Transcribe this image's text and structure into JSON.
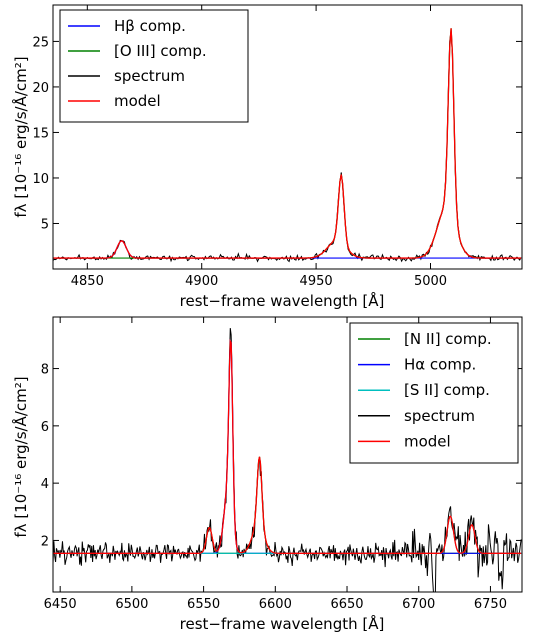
{
  "chart_data": [
    {
      "type": "line",
      "xlabel": "rest−frame wavelength [Å]",
      "ylabel": "fλ [10⁻¹⁶ erg/s/Å/cm²]",
      "xlim": [
        4835,
        5040
      ],
      "ylim": [
        0,
        29
      ],
      "xticks": [
        4850,
        4900,
        4950,
        5000
      ],
      "yticks": [
        5,
        10,
        15,
        20,
        25
      ],
      "grid": false,
      "legend_position": "top-left",
      "continuum": 1.2,
      "noise": 0.22,
      "series": [
        {
          "name": "Hβ comp.",
          "color": "#0000ff",
          "role": "component",
          "peaks": [
            {
              "center": 4865,
              "amplitude": 1.9,
              "sigma": 2.0
            }
          ]
        },
        {
          "name": "[O III] comp.",
          "color": "#008000",
          "role": "component",
          "peaks": [
            {
              "center": 4961,
              "amplitude": 7.5,
              "sigma": 1.2
            },
            {
              "center": 4959,
              "amplitude": 1.9,
              "sigma": 4.0
            },
            {
              "center": 5009,
              "amplitude": 20.3,
              "sigma": 1.2
            },
            {
              "center": 5007,
              "amplitude": 5.6,
              "sigma": 4.0
            }
          ]
        },
        {
          "name": "spectrum",
          "color": "#000000",
          "role": "data"
        },
        {
          "name": "model",
          "color": "#ff0000",
          "role": "model"
        }
      ]
    },
    {
      "type": "line",
      "xlabel": "rest−frame wavelength [Å]",
      "ylabel": "fλ [10⁻¹⁶ erg/s/Å/cm²]",
      "xlim": [
        6445,
        6772
      ],
      "ylim": [
        0.2,
        9.8
      ],
      "xticks": [
        6450,
        6500,
        6550,
        6600,
        6650,
        6700,
        6750
      ],
      "yticks": [
        2,
        4,
        6,
        8
      ],
      "grid": false,
      "legend_position": "top-right",
      "continuum": 1.55,
      "noise": 0.25,
      "series": [
        {
          "name": "[N II] comp.",
          "color": "#008000",
          "role": "component",
          "peaks": [
            {
              "center": 6554,
              "amplitude": 0.9,
              "sigma": 2.0
            },
            {
              "center": 6589,
              "amplitude": 2.4,
              "sigma": 1.6
            },
            {
              "center": 6588,
              "amplitude": 1.0,
              "sigma": 4.0
            }
          ]
        },
        {
          "name": "Hα comp.",
          "color": "#0000ff",
          "role": "component",
          "peaks": [
            {
              "center": 6569,
              "amplitude": 5.8,
              "sigma": 1.3
            },
            {
              "center": 6567,
              "amplitude": 2.2,
              "sigma": 2.8
            }
          ]
        },
        {
          "name": "[S II] comp.",
          "color": "#00bfbf",
          "role": "component",
          "peaks": [
            {
              "center": 6722,
              "amplitude": 1.3,
              "sigma": 2.2
            },
            {
              "center": 6737,
              "amplitude": 1.0,
              "sigma": 2.2
            }
          ]
        },
        {
          "name": "spectrum",
          "color": "#000000",
          "role": "data"
        },
        {
          "name": "model",
          "color": "#ff0000",
          "role": "model"
        }
      ]
    }
  ]
}
